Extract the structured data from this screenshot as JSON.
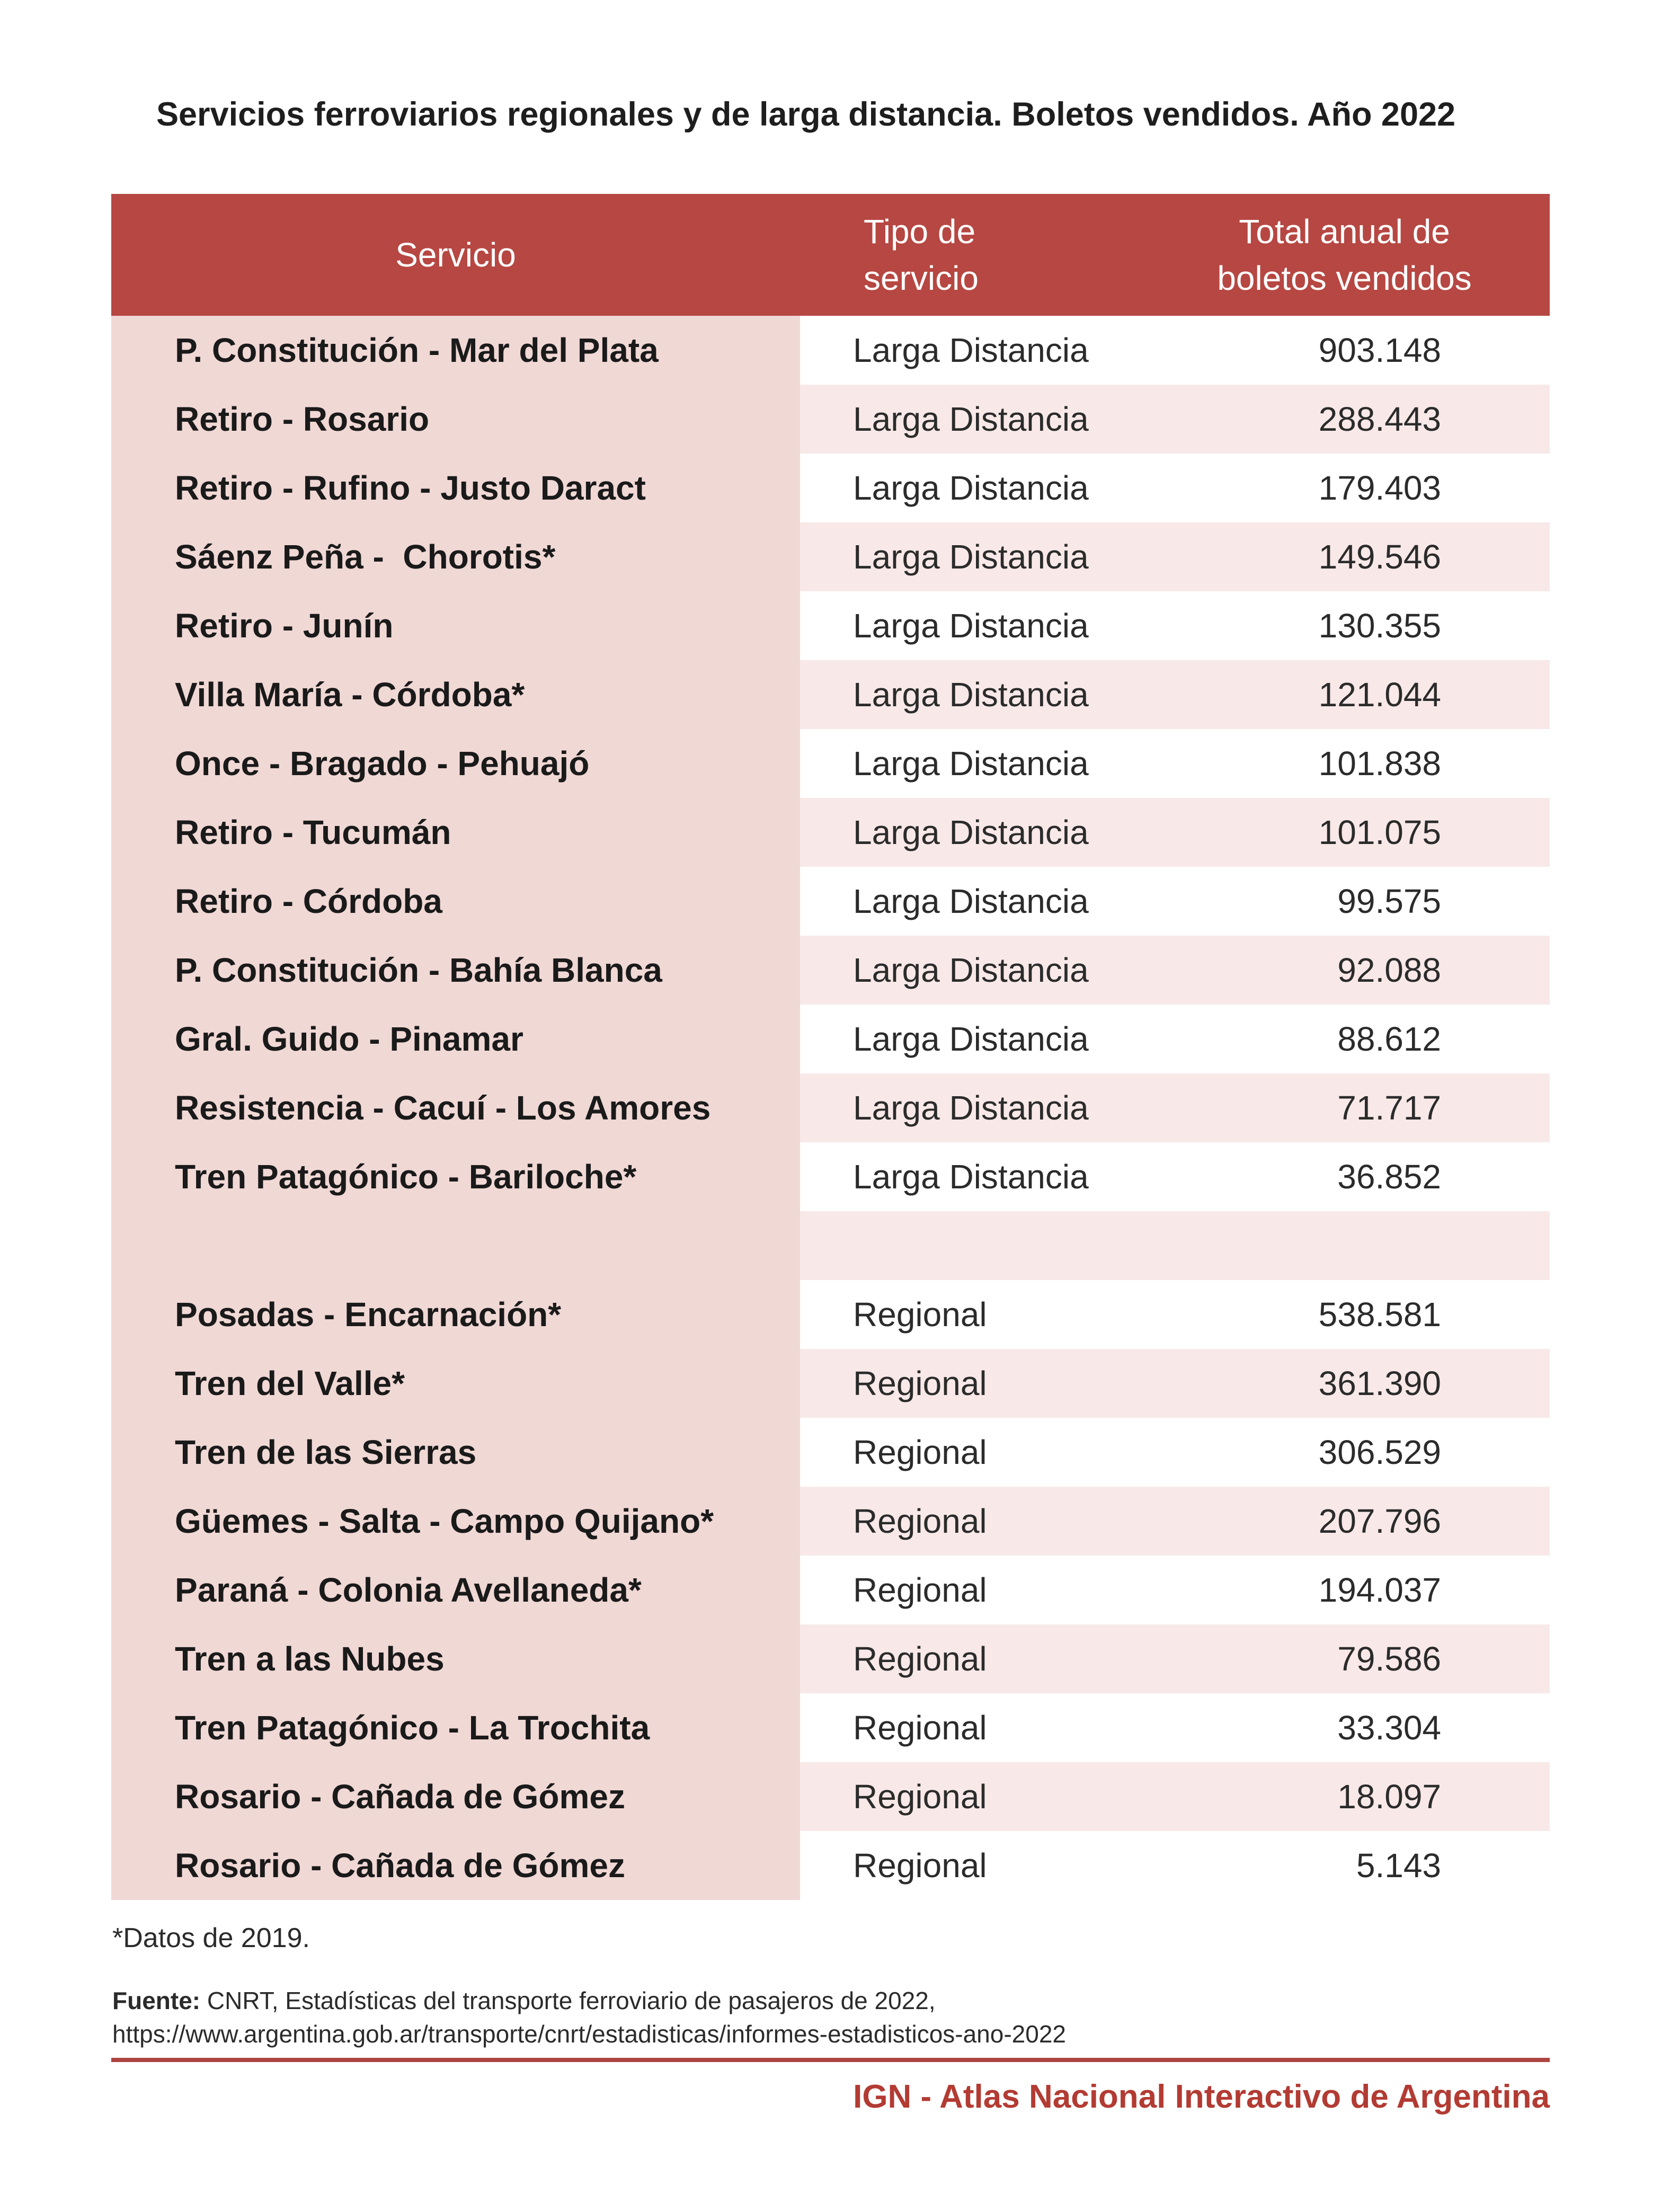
{
  "page": {
    "title": "Servicios ferroviarios regionales y de larga distancia. Boletos vendidos. Año 2022",
    "footnote": "*Datos de 2019.",
    "source_label": "Fuente:",
    "source_text": " CNRT, Estadísticas del transporte ferroviario de pasajeros de 2022,",
    "source_url": "https://www.argentina.gob.ar/transporte/cnrt/estadisticas/informes-estadisticos-ano-2022",
    "footer_brand": "IGN - Atlas Nacional Interactivo de Argentina"
  },
  "colors": {
    "header_bg": "#b64742",
    "service_column_bg": "#f0d8d5",
    "row_alternate_bg": "#f8e9e8",
    "rule_red": "#ad4440",
    "brand_red": "#b23b33",
    "text": "#2b2b2b"
  },
  "table": {
    "headers": {
      "servicio": "Servicio",
      "tipo_line1": "Tipo de",
      "tipo_line2": "servicio",
      "total_line1": "Total anual de",
      "total_line2": "boletos vendidos"
    },
    "rows": [
      {
        "servicio": "P. Constitución - Mar del Plata",
        "tipo": "Larga Distancia",
        "total": "903.148"
      },
      {
        "servicio": "Retiro - Rosario",
        "tipo": "Larga Distancia",
        "total": "288.443"
      },
      {
        "servicio": "Retiro - Rufino - Justo Daract",
        "tipo": "Larga Distancia",
        "total": "179.403"
      },
      {
        "servicio": "Sáenz Peña -  Chorotis*",
        "tipo": "Larga Distancia",
        "total": "149.546"
      },
      {
        "servicio": "Retiro - Junín",
        "tipo": "Larga Distancia",
        "total": "130.355"
      },
      {
        "servicio": "Villa María - Córdoba*",
        "tipo": "Larga Distancia",
        "total": "121.044"
      },
      {
        "servicio": "Once - Bragado - Pehuajó",
        "tipo": "Larga Distancia",
        "total": "101.838"
      },
      {
        "servicio": "Retiro - Tucumán",
        "tipo": "Larga Distancia",
        "total": "101.075"
      },
      {
        "servicio": "Retiro - Córdoba",
        "tipo": "Larga Distancia",
        "total": "99.575"
      },
      {
        "servicio": "P. Constitución - Bahía Blanca",
        "tipo": "Larga Distancia",
        "total": "92.088"
      },
      {
        "servicio": "Gral. Guido - Pinamar",
        "tipo": "Larga Distancia",
        "total": "88.612"
      },
      {
        "servicio": "Resistencia - Cacuí - Los Amores",
        "tipo": "Larga Distancia",
        "total": "71.717"
      },
      {
        "servicio": "Tren Patagónico - Bariloche*",
        "tipo": "Larga Distancia",
        "total": "36.852"
      },
      {
        "spacer": true,
        "servicio": "",
        "tipo": "",
        "total": ""
      },
      {
        "servicio": "Posadas - Encarnación*",
        "tipo": "Regional",
        "total": "538.581"
      },
      {
        "servicio": "Tren del Valle*",
        "tipo": "Regional",
        "total": "361.390"
      },
      {
        "servicio": "Tren de las Sierras",
        "tipo": "Regional",
        "total": "306.529"
      },
      {
        "servicio": "Güemes - Salta - Campo Quijano*",
        "tipo": "Regional",
        "total": "207.796"
      },
      {
        "servicio": "Paraná - Colonia Avellaneda*",
        "tipo": "Regional",
        "total": "194.037"
      },
      {
        "servicio": "Tren a las Nubes",
        "tipo": "Regional",
        "total": "79.586"
      },
      {
        "servicio": "Tren Patagónico - La Trochita",
        "tipo": "Regional",
        "total": "33.304"
      },
      {
        "servicio": "Rosario - Cañada de Gómez",
        "tipo": "Regional",
        "total": "18.097"
      },
      {
        "servicio": "Rosario - Cañada de Gómez",
        "tipo": "Regional",
        "total": "5.143"
      }
    ]
  }
}
